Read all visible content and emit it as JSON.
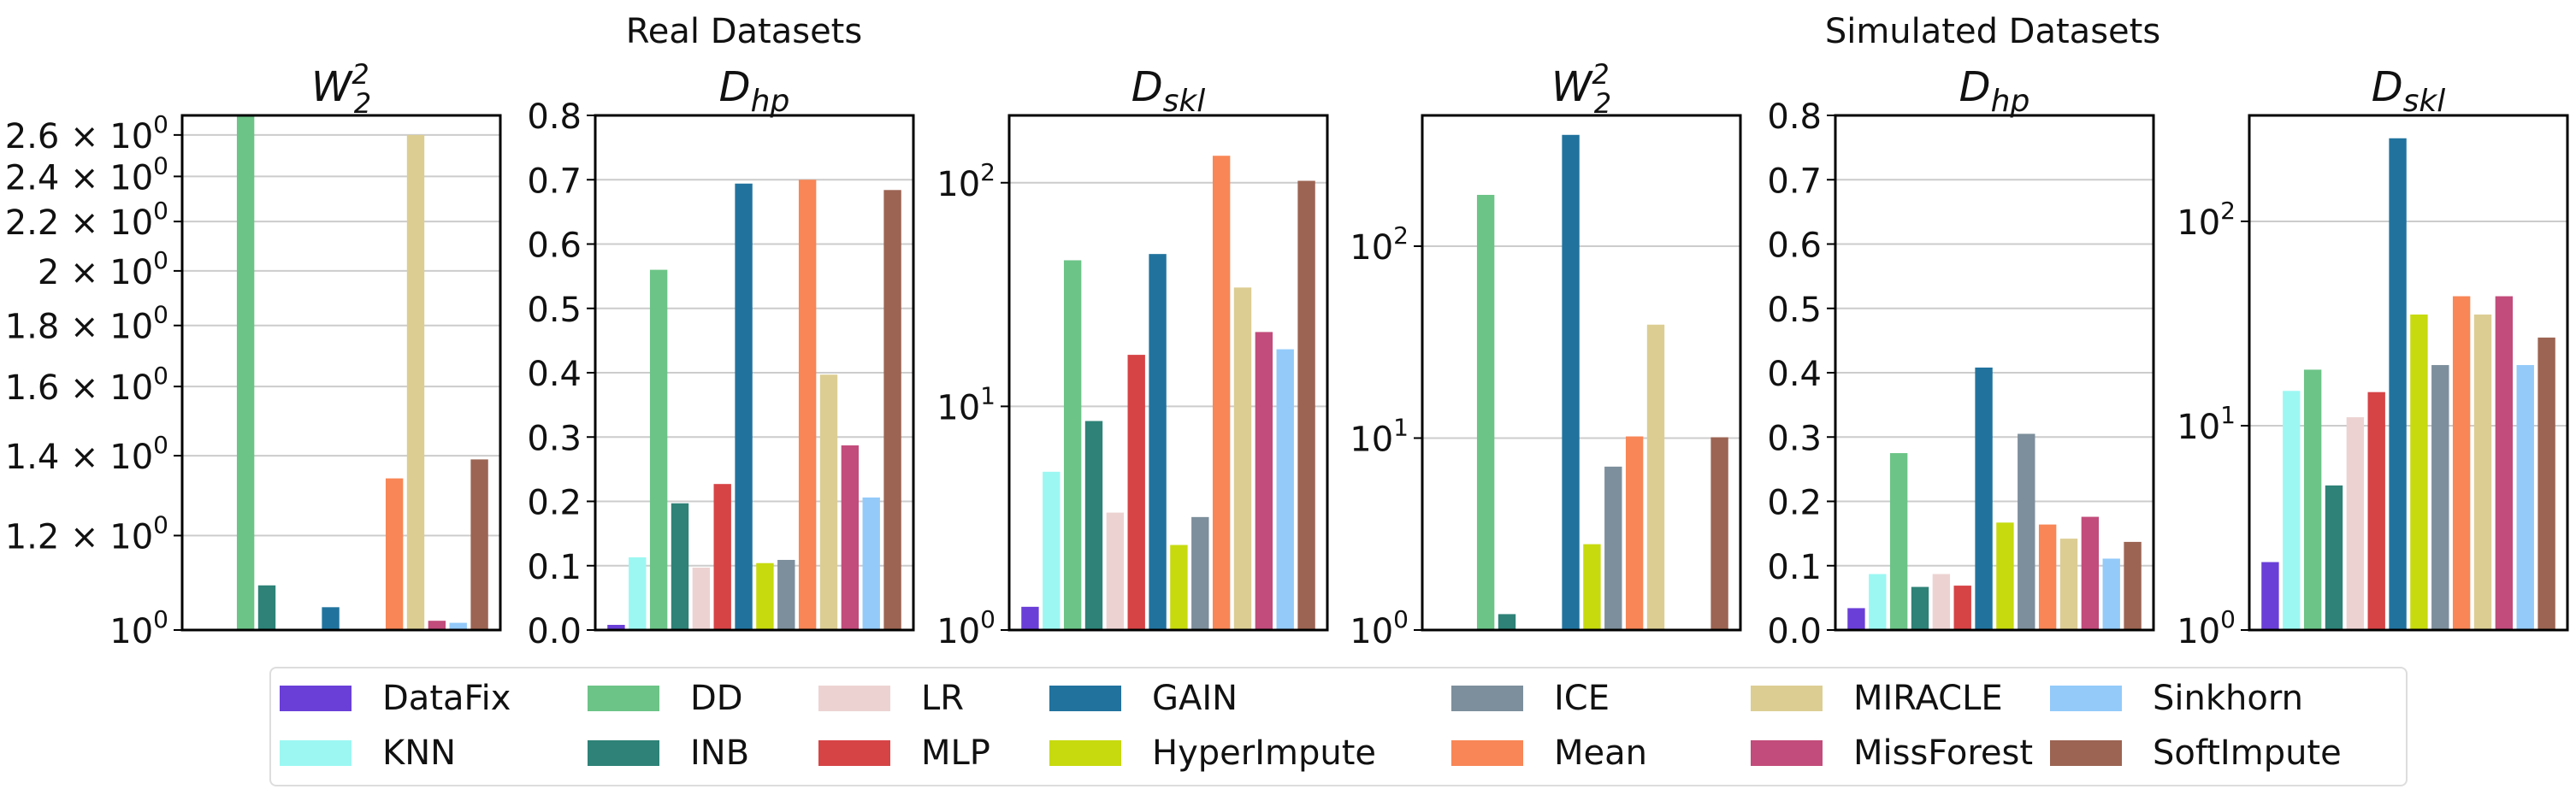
{
  "suptitles": {
    "real": "Real Datasets",
    "simulated": "Simulated Datasets"
  },
  "methods": [
    {
      "name": "DataFix",
      "color": "#6a3fd8"
    },
    {
      "name": "KNN",
      "color": "#9cf7f2"
    },
    {
      "name": "DD",
      "color": "#6cc487"
    },
    {
      "name": "INB",
      "color": "#2e8277"
    },
    {
      "name": "LR",
      "color": "#ecd3d2"
    },
    {
      "name": "MLP",
      "color": "#d64446"
    },
    {
      "name": "GAIN",
      "color": "#21739e"
    },
    {
      "name": "HyperImpute",
      "color": "#c6da0e"
    },
    {
      "name": "ICE",
      "color": "#7d8f9c"
    },
    {
      "name": "Mean",
      "color": "#f88656"
    },
    {
      "name": "MIRACLE",
      "color": "#dccd93"
    },
    {
      "name": "MissForest",
      "color": "#c24c7b"
    },
    {
      "name": "Sinkhorn",
      "color": "#93cafa"
    },
    {
      "name": "SoftImpute",
      "color": "#9c6453"
    }
  ],
  "chart_data": [
    {
      "type": "bar",
      "group": "Real Datasets",
      "title": "W_2^2",
      "yscale": "log",
      "ylim": [
        1.0,
        2.7
      ],
      "yticks": [
        1.0,
        1.2,
        1.4,
        1.6,
        1.8,
        2.0,
        2.2,
        2.4,
        2.6
      ],
      "ytick_labels": [
        "10^0",
        "1.2 × 10^0",
        "1.4 × 10^0",
        "1.6 × 10^0",
        "1.8 × 10^0",
        "2 × 10^0",
        "2.2 × 10^0",
        "2.4 × 10^0",
        "2.6 × 10^0"
      ],
      "categories": [
        "DataFix",
        "KNN",
        "DD",
        "INB",
        "LR",
        "MLP",
        "GAIN",
        "HyperImpute",
        "ICE",
        "Mean",
        "MIRACLE",
        "MissForest",
        "Sinkhorn",
        "SoftImpute"
      ],
      "values": [
        null,
        null,
        2.72,
        1.09,
        null,
        null,
        1.045,
        null,
        null,
        1.34,
        2.6,
        1.018,
        1.014,
        1.39
      ]
    },
    {
      "type": "bar",
      "group": "Real Datasets",
      "title": "D_hp",
      "yscale": "linear",
      "ylim": [
        0,
        0.8
      ],
      "yticks": [
        0,
        0.1,
        0.2,
        0.3,
        0.4,
        0.5,
        0.6,
        0.7,
        0.8
      ],
      "ytick_labels": [
        "0.0",
        "0.1",
        "0.2",
        "0.3",
        "0.4",
        "0.5",
        "0.6",
        "0.7",
        "0.8"
      ],
      "categories": [
        "DataFix",
        "KNN",
        "DD",
        "INB",
        "LR",
        "MLP",
        "GAIN",
        "HyperImpute",
        "ICE",
        "Mean",
        "MIRACLE",
        "MissForest",
        "Sinkhorn",
        "SoftImpute"
      ],
      "values": [
        0.008,
        0.113,
        0.56,
        0.197,
        0.097,
        0.227,
        0.694,
        0.104,
        0.109,
        0.7,
        0.397,
        0.287,
        0.206,
        0.684
      ]
    },
    {
      "type": "bar",
      "group": "Real Datasets",
      "title": "D_skl",
      "yscale": "log",
      "ylim": [
        1,
        200
      ],
      "yticks": [
        1,
        10,
        100
      ],
      "ytick_labels": [
        "10^0",
        "10^1",
        "10^2"
      ],
      "categories": [
        "DataFix",
        "KNN",
        "DD",
        "INB",
        "LR",
        "MLP",
        "GAIN",
        "HyperImpute",
        "ICE",
        "Mean",
        "MIRACLE",
        "MissForest",
        "Sinkhorn",
        "SoftImpute"
      ],
      "values": [
        1.27,
        5.1,
        45,
        8.6,
        3.35,
        17,
        48,
        2.4,
        3.2,
        132,
        34,
        21.5,
        18,
        102
      ]
    },
    {
      "type": "bar",
      "group": "Simulated Datasets",
      "title": "W_2^2",
      "yscale": "log",
      "ylim": [
        1,
        480
      ],
      "yticks": [
        1,
        10,
        100
      ],
      "ytick_labels": [
        "10^0",
        "10^1",
        "10^2"
      ],
      "categories": [
        "DataFix",
        "KNN",
        "DD",
        "INB",
        "LR",
        "MLP",
        "GAIN",
        "HyperImpute",
        "ICE",
        "Mean",
        "MIRACLE",
        "MissForest",
        "Sinkhorn",
        "SoftImpute"
      ],
      "values": [
        null,
        null,
        185,
        1.21,
        null,
        null,
        380,
        2.8,
        7.1,
        10.2,
        39,
        null,
        null,
        10.1
      ]
    },
    {
      "type": "bar",
      "group": "Simulated Datasets",
      "title": "D_hp",
      "yscale": "linear",
      "ylim": [
        0,
        0.8
      ],
      "yticks": [
        0,
        0.1,
        0.2,
        0.3,
        0.4,
        0.5,
        0.6,
        0.7,
        0.8
      ],
      "ytick_labels": [
        "0.0",
        "0.1",
        "0.2",
        "0.3",
        "0.4",
        "0.5",
        "0.6",
        "0.7",
        "0.8"
      ],
      "categories": [
        "DataFix",
        "KNN",
        "DD",
        "INB",
        "LR",
        "MLP",
        "GAIN",
        "HyperImpute",
        "ICE",
        "Mean",
        "MIRACLE",
        "MissForest",
        "Sinkhorn",
        "SoftImpute"
      ],
      "values": [
        0.034,
        0.087,
        0.275,
        0.067,
        0.087,
        0.069,
        0.408,
        0.167,
        0.305,
        0.164,
        0.142,
        0.176,
        0.111,
        0.137
      ]
    },
    {
      "type": "bar",
      "group": "Simulated Datasets",
      "title": "D_skl",
      "yscale": "log",
      "ylim": [
        1,
        330
      ],
      "yticks": [
        1,
        10,
        100
      ],
      "ytick_labels": [
        "10^0",
        "10^1",
        "10^2"
      ],
      "categories": [
        "DataFix",
        "KNN",
        "DD",
        "INB",
        "LR",
        "MLP",
        "GAIN",
        "HyperImpute",
        "ICE",
        "Mean",
        "MIRACLE",
        "MissForest",
        "Sinkhorn",
        "SoftImpute"
      ],
      "values": [
        2.15,
        14.8,
        18.8,
        5.1,
        11,
        14.6,
        255,
        35,
        19.8,
        43,
        35,
        43,
        19.8,
        27
      ]
    }
  ]
}
